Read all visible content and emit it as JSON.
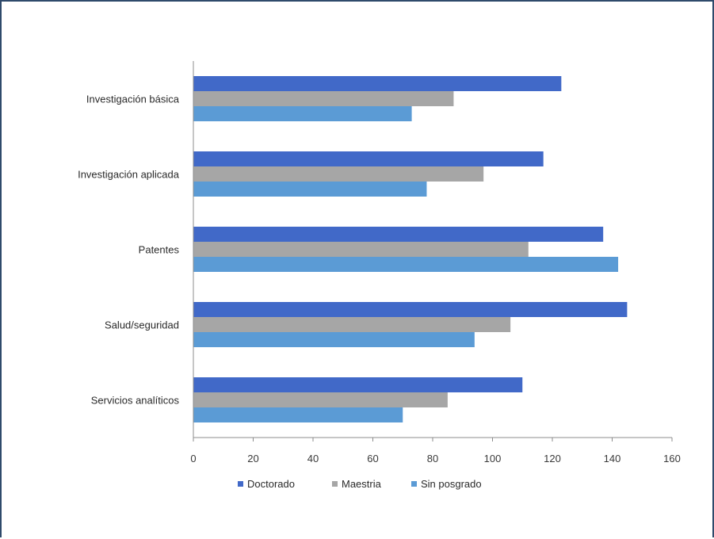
{
  "chart_data": {
    "type": "bar",
    "orientation": "horizontal",
    "categories": [
      "Investigación básica",
      "Investigación aplicada",
      "Patentes",
      "Salud/seguridad",
      "Servicios analíticos"
    ],
    "series": [
      {
        "name": "Doctorado",
        "values": [
          123,
          117,
          137,
          145,
          110
        ]
      },
      {
        "name": "Maestria",
        "values": [
          87,
          97,
          112,
          106,
          85
        ]
      },
      {
        "name": "Sin posgrado",
        "values": [
          73,
          78,
          142,
          94,
          70
        ]
      }
    ],
    "colors": [
      "#4169c8",
      "#a6a6a6",
      "#5b9bd5"
    ],
    "xlim": [
      0,
      160
    ],
    "xticks": [
      "0",
      "20",
      "40",
      "60",
      "80",
      "100",
      "120",
      "140",
      "160"
    ],
    "legend_position": "bottom",
    "grid": false,
    "title": "",
    "xlabel": "",
    "ylabel": ""
  }
}
